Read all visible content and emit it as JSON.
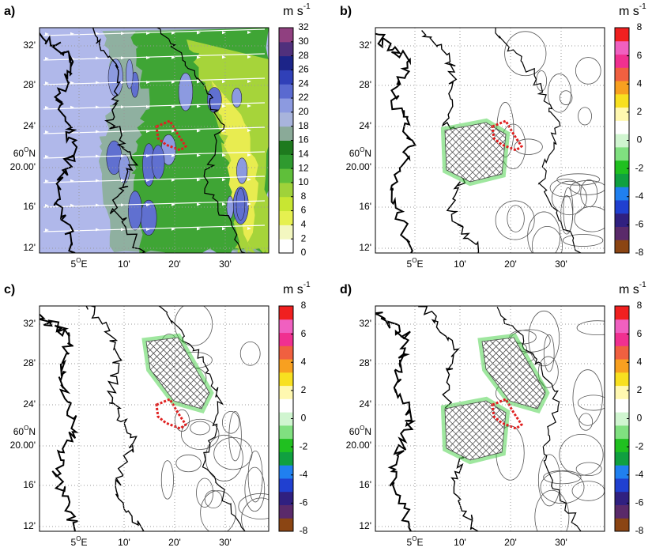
{
  "panels": [
    {
      "label": "a)",
      "unit": "m s",
      "unit_exp": "-1",
      "colorbar_ticks": [
        32,
        30,
        28,
        26,
        24,
        22,
        20,
        18,
        16,
        14,
        12,
        10,
        8,
        6,
        4,
        2,
        0
      ],
      "y_ticks": [
        "32'",
        "28'",
        "24'",
        "20.00'",
        "16'",
        "12'"
      ],
      "lat_label": {
        "value": "60",
        "degree": "O",
        "hemisphere": "N"
      },
      "lon_label": {
        "value": "5",
        "degree": "O",
        "hemisphere": "E"
      },
      "x_ticks": [
        "10'",
        "20'",
        "30'"
      ]
    },
    {
      "label": "b)",
      "unit": "m s",
      "unit_exp": "-1",
      "colorbar_ticks": [
        8,
        6,
        4,
        2,
        0,
        -2,
        -4,
        -6,
        -8
      ],
      "y_ticks": [
        "32'",
        "28'",
        "24'",
        "20.00'",
        "16'",
        "12'"
      ],
      "lat_label": {
        "value": "60",
        "degree": "O",
        "hemisphere": "N"
      },
      "lon_label": {
        "value": "5",
        "degree": "O",
        "hemisphere": "E"
      },
      "x_ticks": [
        "10'",
        "20'",
        "30'"
      ]
    },
    {
      "label": "c)",
      "unit": "m s",
      "unit_exp": "-1",
      "colorbar_ticks": [
        8,
        6,
        4,
        2,
        0,
        -2,
        -4,
        -6,
        -8
      ],
      "y_ticks": [
        "32'",
        "28'",
        "24'",
        "20.00'",
        "16'",
        "12'"
      ],
      "lat_label": {
        "value": "60",
        "degree": "O",
        "hemisphere": "N"
      },
      "lon_label": {
        "value": "5",
        "degree": "O",
        "hemisphere": "E"
      },
      "x_ticks": [
        "10'",
        "20'",
        "30'"
      ]
    },
    {
      "label": "d)",
      "unit": "m s",
      "unit_exp": "-1",
      "colorbar_ticks": [
        8,
        6,
        4,
        2,
        0,
        -2,
        -4,
        -6,
        -8
      ],
      "y_ticks": [
        "32'",
        "28'",
        "24'",
        "20.00'",
        "16'",
        "12'"
      ],
      "lat_label": {
        "value": "60",
        "degree": "O",
        "hemisphere": "N"
      },
      "lon_label": {
        "value": "5",
        "degree": "O",
        "hemisphere": "E"
      },
      "x_ticks": [
        "10'",
        "20'",
        "30'"
      ]
    }
  ]
}
